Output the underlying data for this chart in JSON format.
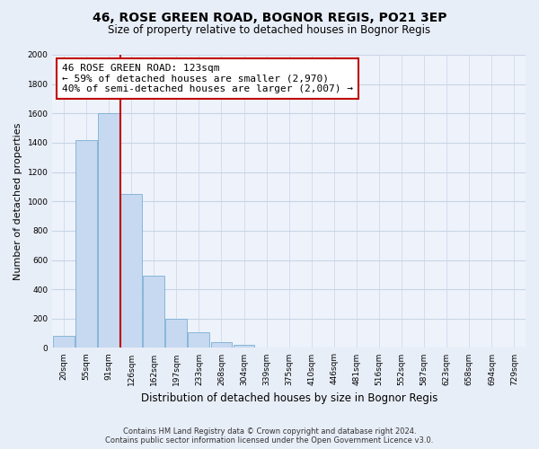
{
  "title": "46, ROSE GREEN ROAD, BOGNOR REGIS, PO21 3EP",
  "subtitle": "Size of property relative to detached houses in Bognor Regis",
  "xlabel": "Distribution of detached houses by size in Bognor Regis",
  "ylabel": "Number of detached properties",
  "bin_labels": [
    "20sqm",
    "55sqm",
    "91sqm",
    "126sqm",
    "162sqm",
    "197sqm",
    "233sqm",
    "268sqm",
    "304sqm",
    "339sqm",
    "375sqm",
    "410sqm",
    "446sqm",
    "481sqm",
    "516sqm",
    "552sqm",
    "587sqm",
    "623sqm",
    "658sqm",
    "694sqm",
    "729sqm"
  ],
  "bar_heights": [
    85,
    1415,
    1600,
    1050,
    490,
    200,
    108,
    38,
    18,
    0,
    0,
    0,
    0,
    0,
    0,
    0,
    0,
    0,
    0,
    0,
    0
  ],
  "bar_color": "#c6d9f0",
  "bar_edge_color": "#7bafd4",
  "vline_color": "#c00000",
  "vline_x_index": 3,
  "annotation_text_line1": "46 ROSE GREEN ROAD: 123sqm",
  "annotation_text_line2": "← 59% of detached houses are smaller (2,970)",
  "annotation_text_line3": "40% of semi-detached houses are larger (2,007) →",
  "annotation_box_facecolor": "#ffffff",
  "annotation_box_edgecolor": "#c00000",
  "ylim": [
    0,
    2000
  ],
  "yticks": [
    0,
    200,
    400,
    600,
    800,
    1000,
    1200,
    1400,
    1600,
    1800,
    2000
  ],
  "footer_line1": "Contains HM Land Registry data © Crown copyright and database right 2024.",
  "footer_line2": "Contains public sector information licensed under the Open Government Licence v3.0.",
  "bg_color": "#e8eef8",
  "plot_bg_color": "#eef3fb",
  "grid_color": "#c8d4e8",
  "title_fontsize": 10,
  "subtitle_fontsize": 8.5,
  "ylabel_fontsize": 8,
  "xlabel_fontsize": 8.5,
  "tick_fontsize": 6.5,
  "footer_fontsize": 6
}
